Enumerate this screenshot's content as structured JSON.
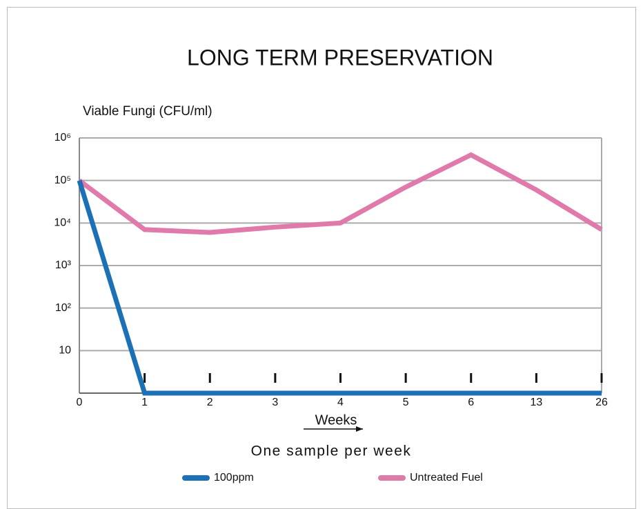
{
  "chart_data": {
    "type": "line",
    "title": "LONG TERM PRESERVATION",
    "y_label": "Viable Fungi (CFU/ml)",
    "x_label": "Weeks",
    "subtitle": "One sample per week",
    "categories": [
      "0",
      "1",
      "2",
      "3",
      "4",
      "5",
      "6",
      "13",
      "26"
    ],
    "series": [
      {
        "name": "100ppm",
        "color": "#1b70b6",
        "values": [
          100000,
          1,
          1,
          1,
          1,
          1,
          1,
          1,
          1
        ]
      },
      {
        "name": "Untreated Fuel",
        "color": "#e07aaa",
        "values": [
          100000,
          7000,
          6000,
          8000,
          10000,
          70000,
          400000,
          60000,
          7000
        ]
      }
    ],
    "log_scale": true,
    "ylim": [
      1,
      1000000
    ],
    "yticks": [
      10,
      {
        "value": 100,
        "label": "10²"
      },
      {
        "value": 1000,
        "label": "10³"
      },
      {
        "value": 10000,
        "label": "10⁴"
      },
      {
        "value": 100000,
        "label": "10⁵"
      },
      {
        "value": 1000000,
        "label": "10⁶"
      }
    ],
    "grid": true
  }
}
